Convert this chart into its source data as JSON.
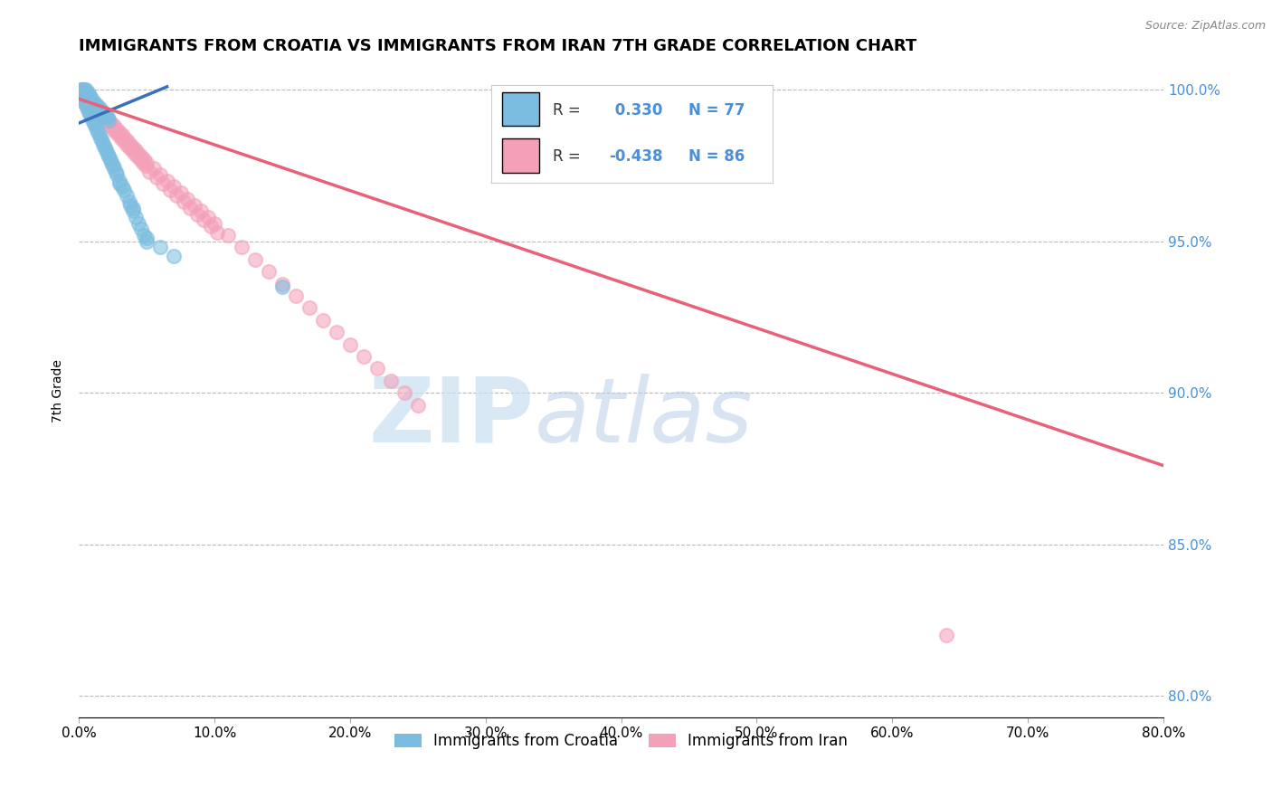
{
  "title": "IMMIGRANTS FROM CROATIA VS IMMIGRANTS FROM IRAN 7TH GRADE CORRELATION CHART",
  "source_text": "Source: ZipAtlas.com",
  "ylabel": "7th Grade",
  "legend_label_croatia": "Immigrants from Croatia",
  "legend_label_iran": "Immigrants from Iran",
  "R_croatia": 0.33,
  "N_croatia": 77,
  "R_iran": -0.438,
  "N_iran": 86,
  "color_croatia": "#7bbde0",
  "color_iran": "#f4a0b8",
  "line_color_croatia": "#3a6fba",
  "line_color_iran": "#e8607a",
  "xmin": 0.0,
  "xmax": 0.8,
  "ymin": 0.793,
  "ymax": 1.008,
  "yticks": [
    0.8,
    0.85,
    0.9,
    0.95,
    1.0
  ],
  "xticks": [
    0.0,
    0.1,
    0.2,
    0.3,
    0.4,
    0.5,
    0.6,
    0.7,
    0.8
  ],
  "watermark_zip": "ZIP",
  "watermark_atlas": "atlas",
  "background_color": "#ffffff",
  "grid_color": "#bbbbbb",
  "title_fontsize": 13,
  "axis_label_fontsize": 10,
  "tick_fontsize": 11,
  "legend_fontsize": 12,
  "croatia_scatter_x": [
    0.001,
    0.002,
    0.003,
    0.004,
    0.005,
    0.006,
    0.007,
    0.008,
    0.009,
    0.01,
    0.011,
    0.012,
    0.013,
    0.014,
    0.015,
    0.016,
    0.017,
    0.018,
    0.019,
    0.02,
    0.021,
    0.022,
    0.023,
    0.024,
    0.025,
    0.026,
    0.027,
    0.028,
    0.03,
    0.032,
    0.033,
    0.035,
    0.037,
    0.038,
    0.04,
    0.042,
    0.044,
    0.046,
    0.048,
    0.05,
    0.002,
    0.003,
    0.004,
    0.005,
    0.006,
    0.007,
    0.008,
    0.009,
    0.01,
    0.011,
    0.012,
    0.013,
    0.014,
    0.015,
    0.016,
    0.017,
    0.018,
    0.019,
    0.02,
    0.021,
    0.022,
    0.003,
    0.004,
    0.005,
    0.006,
    0.007,
    0.008,
    0.03,
    0.04,
    0.05,
    0.001,
    0.001,
    0.002,
    0.003,
    0.06,
    0.07,
    0.15
  ],
  "croatia_scatter_y": [
    0.999,
    0.998,
    0.997,
    0.996,
    0.995,
    0.994,
    0.993,
    0.992,
    0.991,
    0.99,
    0.989,
    0.988,
    0.987,
    0.986,
    0.985,
    0.984,
    0.983,
    0.982,
    0.981,
    0.98,
    0.979,
    0.978,
    0.977,
    0.976,
    0.975,
    0.974,
    0.973,
    0.972,
    0.97,
    0.968,
    0.967,
    0.965,
    0.963,
    0.962,
    0.96,
    0.958,
    0.956,
    0.954,
    0.952,
    0.95,
    1.0,
    1.0,
    0.999,
    0.999,
    0.998,
    0.998,
    0.997,
    0.997,
    0.996,
    0.996,
    0.995,
    0.995,
    0.994,
    0.994,
    0.993,
    0.993,
    0.992,
    0.992,
    0.991,
    0.991,
    0.99,
    1.0,
    1.0,
    1.0,
    0.999,
    0.999,
    0.998,
    0.969,
    0.961,
    0.951,
    1.0,
    0.999,
    0.998,
    0.997,
    0.948,
    0.945,
    0.935
  ],
  "iran_scatter_x": [
    0.002,
    0.004,
    0.006,
    0.008,
    0.01,
    0.012,
    0.014,
    0.016,
    0.018,
    0.02,
    0.022,
    0.024,
    0.026,
    0.028,
    0.03,
    0.032,
    0.034,
    0.036,
    0.038,
    0.04,
    0.042,
    0.044,
    0.046,
    0.048,
    0.05,
    0.055,
    0.06,
    0.065,
    0.07,
    0.075,
    0.08,
    0.085,
    0.09,
    0.095,
    0.1,
    0.11,
    0.12,
    0.13,
    0.14,
    0.15,
    0.16,
    0.17,
    0.18,
    0.19,
    0.2,
    0.21,
    0.22,
    0.23,
    0.24,
    0.25,
    0.003,
    0.005,
    0.007,
    0.009,
    0.011,
    0.013,
    0.015,
    0.017,
    0.019,
    0.021,
    0.023,
    0.025,
    0.027,
    0.029,
    0.031,
    0.033,
    0.035,
    0.037,
    0.039,
    0.041,
    0.043,
    0.045,
    0.047,
    0.049,
    0.052,
    0.057,
    0.062,
    0.067,
    0.072,
    0.077,
    0.082,
    0.087,
    0.092,
    0.097,
    0.102,
    0.64
  ],
  "iran_scatter_y": [
    0.999,
    0.998,
    0.997,
    0.996,
    0.996,
    0.995,
    0.994,
    0.993,
    0.992,
    0.991,
    0.99,
    0.989,
    0.988,
    0.987,
    0.986,
    0.985,
    0.984,
    0.983,
    0.982,
    0.981,
    0.98,
    0.979,
    0.978,
    0.977,
    0.976,
    0.974,
    0.972,
    0.97,
    0.968,
    0.966,
    0.964,
    0.962,
    0.96,
    0.958,
    0.956,
    0.952,
    0.948,
    0.944,
    0.94,
    0.936,
    0.932,
    0.928,
    0.924,
    0.92,
    0.916,
    0.912,
    0.908,
    0.904,
    0.9,
    0.896,
    0.998,
    0.997,
    0.996,
    0.995,
    0.994,
    0.993,
    0.992,
    0.991,
    0.99,
    0.989,
    0.988,
    0.987,
    0.986,
    0.985,
    0.984,
    0.983,
    0.982,
    0.981,
    0.98,
    0.979,
    0.978,
    0.977,
    0.976,
    0.975,
    0.973,
    0.971,
    0.969,
    0.967,
    0.965,
    0.963,
    0.961,
    0.959,
    0.957,
    0.955,
    0.953,
    0.82
  ],
  "croatia_trend_x": [
    0.0,
    0.065
  ],
  "croatia_trend_y": [
    0.989,
    1.001
  ],
  "iran_trend_x": [
    0.0,
    0.8
  ],
  "iran_trend_y": [
    0.997,
    0.876
  ]
}
